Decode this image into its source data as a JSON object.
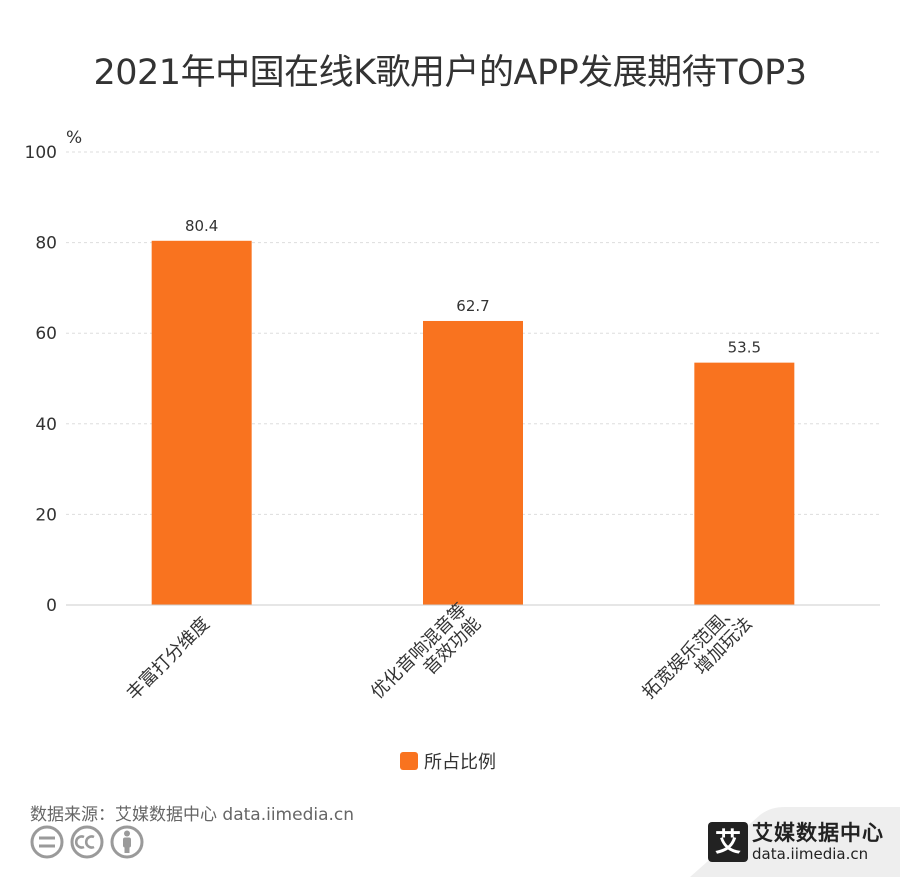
{
  "title": "2021年中国在线K歌用户的APP发展期待TOP3",
  "legend": {
    "label": "所占比例"
  },
  "source": {
    "text": "数据来源：艾媒数据中心 data.iimedia.cn"
  },
  "brand": {
    "name": "艾媒数据中心",
    "url": "data.iimedia.cn",
    "logo_glyph": "艾"
  },
  "colors": {
    "bar": "#f9731f",
    "grid": "#dddddd",
    "axis": "#cccccc",
    "text": "#333333"
  },
  "chart_data": {
    "type": "bar",
    "title": "2021年中国在线K歌用户的APP发展期待TOP3",
    "categories": [
      [
        "丰富打分维度"
      ],
      [
        "优化音响混音等",
        "音效功能"
      ],
      [
        "拓宽娱乐范围、",
        "增加玩法"
      ]
    ],
    "series": [
      {
        "name": "所占比例",
        "values": [
          80.4,
          62.7,
          53.5
        ]
      }
    ],
    "yunit": "%",
    "ylim": [
      0,
      100
    ],
    "yticks": [
      0,
      20,
      40,
      60,
      80,
      100
    ],
    "grid": true,
    "legend_position": "bottom"
  }
}
